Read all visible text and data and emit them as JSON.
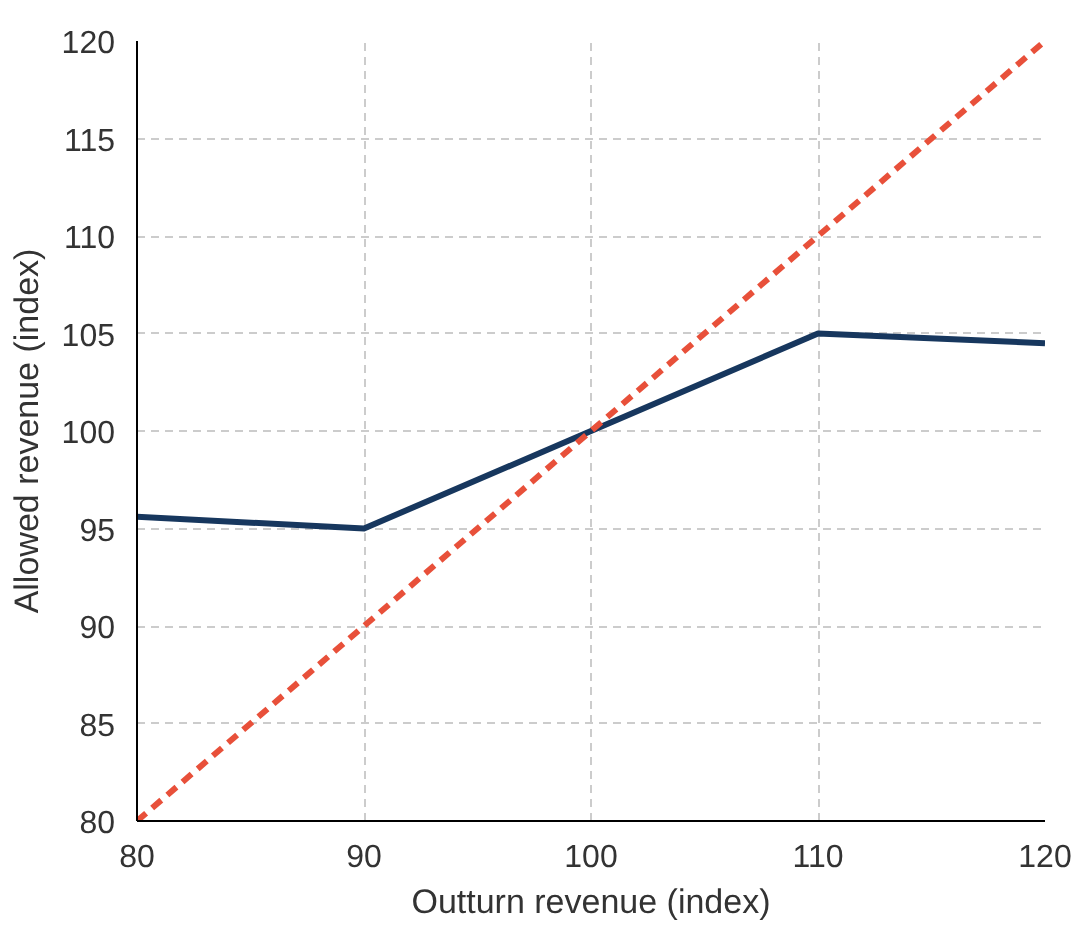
{
  "chart_data": {
    "type": "line",
    "xlabel": "Outturn revenue (index)",
    "ylabel": "Allowed revenue (index)",
    "x": [
      80,
      90,
      100,
      110,
      120
    ],
    "series": [
      {
        "color": "#17375e",
        "values": [
          95.6,
          95.0,
          100.0,
          105.0,
          104.5
        ]
      },
      {
        "color": "#e8503a",
        "x": [
          80,
          120
        ],
        "values": [
          80,
          120
        ],
        "line_style": "dashed"
      }
    ],
    "xlim": [
      80,
      120
    ],
    "xticks": [
      80,
      90,
      100,
      110,
      120
    ],
    "ylim": [
      80,
      120
    ],
    "yticks": [
      80,
      85,
      90,
      95,
      100,
      105,
      110,
      115,
      120
    ],
    "grid": true,
    "marker": "none",
    "line_style": "solid"
  }
}
